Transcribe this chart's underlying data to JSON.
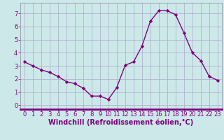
{
  "x": [
    0,
    1,
    2,
    3,
    4,
    5,
    6,
    7,
    8,
    9,
    10,
    11,
    12,
    13,
    14,
    15,
    16,
    17,
    18,
    19,
    20,
    21,
    22,
    23
  ],
  "y": [
    3.3,
    3.0,
    2.7,
    2.5,
    2.2,
    1.8,
    1.65,
    1.3,
    0.7,
    0.7,
    0.45,
    1.35,
    3.05,
    3.3,
    4.5,
    6.4,
    7.2,
    7.2,
    6.9,
    5.5,
    4.0,
    3.4,
    2.2,
    1.9
  ],
  "line_color": "#800080",
  "marker": "D",
  "marker_size": 2.2,
  "bg_color": "#cce8e8",
  "grid_color": "#aaaacc",
  "xlabel": "Windchill (Refroidissement éolien,°C)",
  "xlabel_color": "#800080",
  "xlim": [
    -0.5,
    23.5
  ],
  "ylim": [
    -0.3,
    7.8
  ],
  "xticks": [
    0,
    1,
    2,
    3,
    4,
    5,
    6,
    7,
    8,
    9,
    10,
    11,
    12,
    13,
    14,
    15,
    16,
    17,
    18,
    19,
    20,
    21,
    22,
    23
  ],
  "yticks": [
    0,
    1,
    2,
    3,
    4,
    5,
    6,
    7
  ],
  "tick_fontsize": 6,
  "xlabel_fontsize": 7,
  "line_width": 1.0,
  "spine_color": "#888899",
  "axis_bar_color": "#800080"
}
